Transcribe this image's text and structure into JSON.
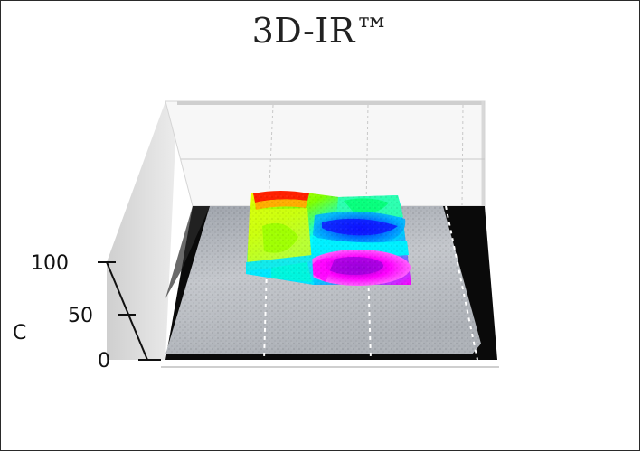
{
  "chart_data": {
    "type": "3d-surface",
    "title": "3D-IR™",
    "zlabel": "C",
    "zticks": [
      0,
      50,
      100
    ],
    "zlim": [
      0,
      100
    ],
    "grid": true,
    "colormap": [
      "#ff0000",
      "#ffff00",
      "#00ff00",
      "#00ffff",
      "#0000ff",
      "#ff00ff"
    ]
  },
  "colors": {
    "frame": "#2a2a2a",
    "wall": "#e3e3e3",
    "floor_dark": "#0a0a0a",
    "photo": "#b9bdc4"
  }
}
